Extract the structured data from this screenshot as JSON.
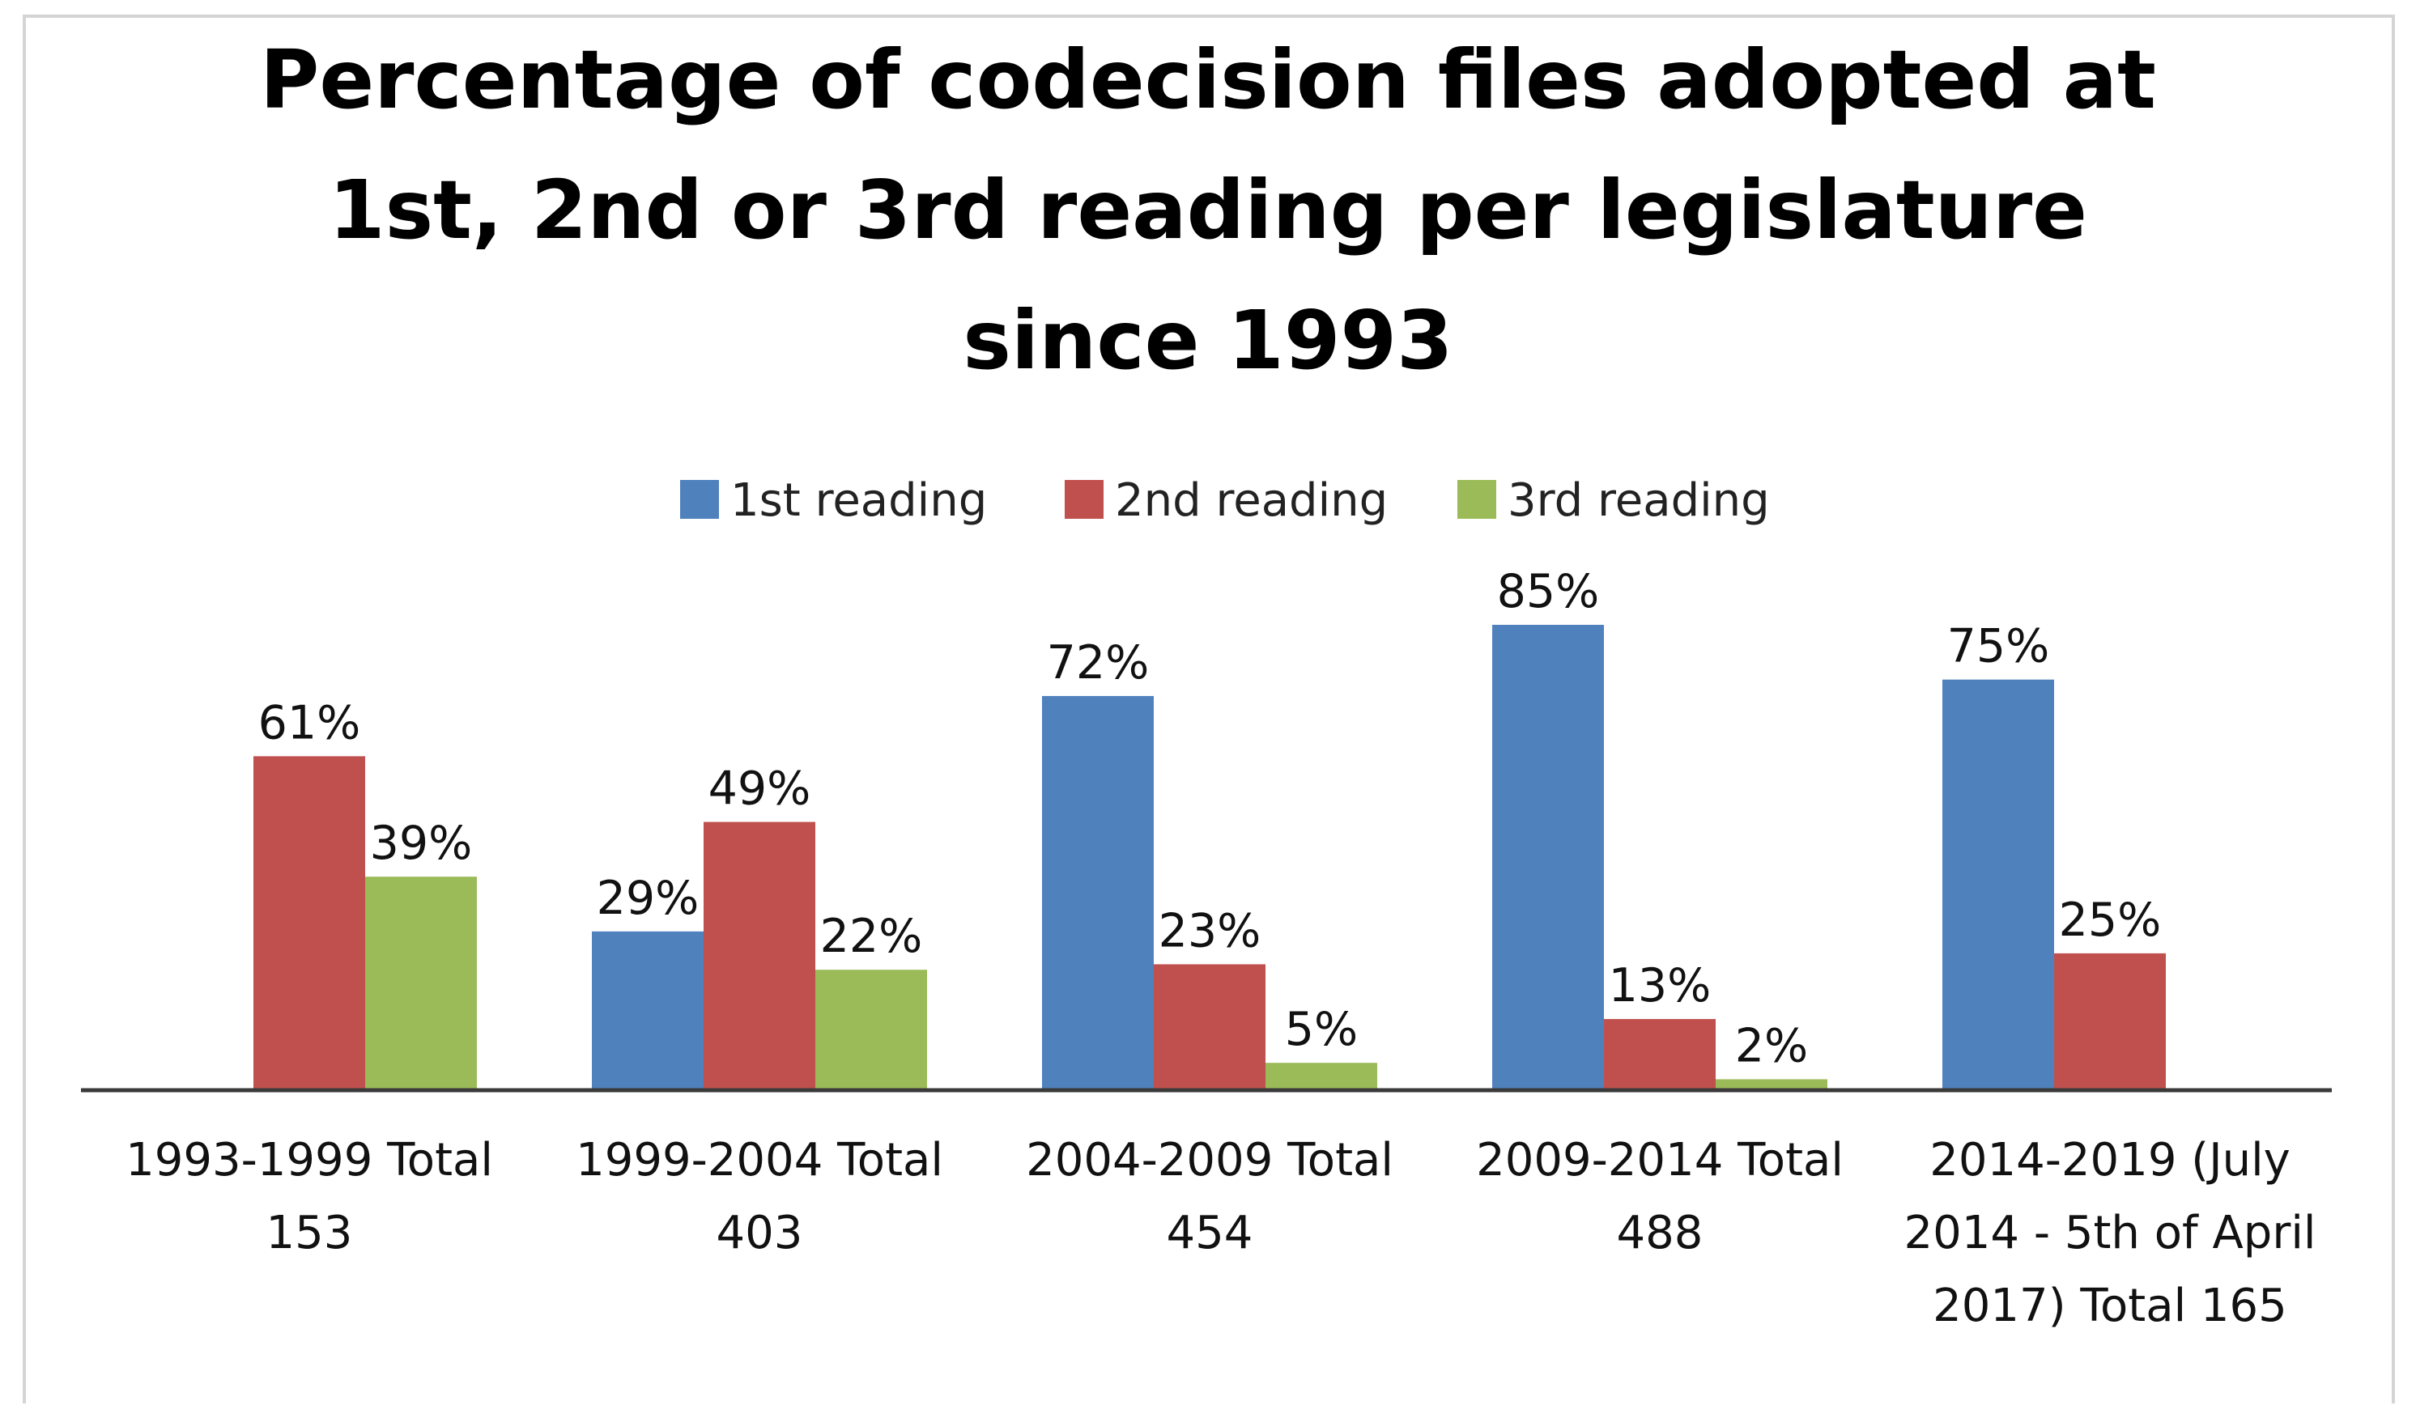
{
  "chart_data": {
    "type": "bar",
    "title": [
      "Percentage of codecision files adopted at",
      "1st, 2nd or 3rd reading per legislature",
      "since 1993"
    ],
    "categories": [
      [
        "1993-1999 Total",
        "153"
      ],
      [
        "1999-2004 Total",
        "403"
      ],
      [
        "2004-2009 Total",
        "454"
      ],
      [
        "2009-2014 Total",
        "488"
      ],
      [
        "2014-2019 (July",
        "2014 - 5th of April",
        "2017) Total 165"
      ]
    ],
    "series": [
      {
        "name": "1st reading",
        "color": "#4f81bd",
        "values": [
          null,
          29,
          72,
          85,
          75
        ]
      },
      {
        "name": "2nd reading",
        "color": "#c0504d",
        "values": [
          61,
          49,
          23,
          13,
          25
        ]
      },
      {
        "name": "3rd reading",
        "color": "#9bbb59",
        "values": [
          39,
          22,
          5,
          2,
          null
        ]
      }
    ],
    "value_suffix": "%",
    "ylim": [
      0,
      90
    ],
    "grid": false,
    "legend": "top-center",
    "xlabel": "",
    "ylabel": ""
  }
}
